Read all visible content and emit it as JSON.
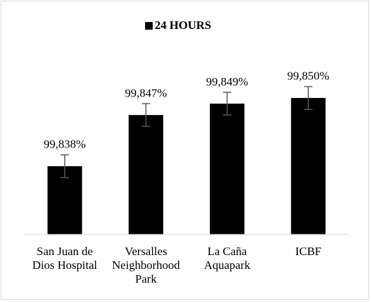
{
  "chart_data": {
    "type": "bar",
    "title": "",
    "xlabel": "",
    "ylabel": "",
    "legend": {
      "position": "top",
      "entries": [
        "24 HOURS"
      ]
    },
    "categories": [
      [
        "San Juan de",
        "Dios Hospital"
      ],
      [
        "Versalles",
        "Neighborhood",
        "Park"
      ],
      [
        "La Caña",
        "Aquapark"
      ],
      [
        "ICBF"
      ]
    ],
    "series": [
      {
        "name": "24 HOURS",
        "color": "#000000",
        "values": [
          99.838,
          99.847,
          99.849,
          99.85
        ],
        "labels": [
          "99,838%",
          "99,847%",
          "99,849%",
          "99,850%"
        ],
        "error": [
          0.002,
          0.002,
          0.002,
          0.002
        ]
      }
    ],
    "ylim": [
      99.826,
      99.8585
    ],
    "y_axis_visible": false,
    "grid": false,
    "error_bar_color": "#595959"
  }
}
